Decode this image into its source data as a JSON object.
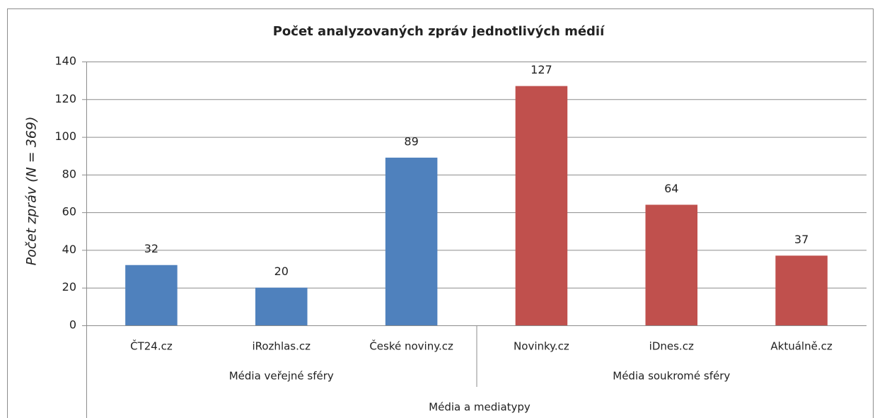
{
  "chart_data": {
    "type": "bar",
    "title": "Počet analyzovaných zpráv jednotlivých médií",
    "y_label": "Počet zpráv (N = 369)",
    "x_label": "Média a mediatypy",
    "categories": [
      "ČT24.cz",
      "iRozhlas.cz",
      "České noviny.cz",
      "Novinky.cz",
      "iDnes.cz",
      "Aktuálně.cz"
    ],
    "series": [
      {
        "name": "Média veřejné sféry",
        "color": "#4f81bd",
        "values": [
          32,
          20,
          89,
          null,
          null,
          null
        ]
      },
      {
        "name": "Média soukromé sféry",
        "color": "#c0504d",
        "values": [
          null,
          null,
          null,
          127,
          64,
          37
        ]
      }
    ],
    "ylim": [
      0,
      140
    ],
    "yticks": [
      0,
      20,
      40,
      60,
      80,
      100,
      120,
      140
    ],
    "grid": true,
    "data_labels": true
  }
}
